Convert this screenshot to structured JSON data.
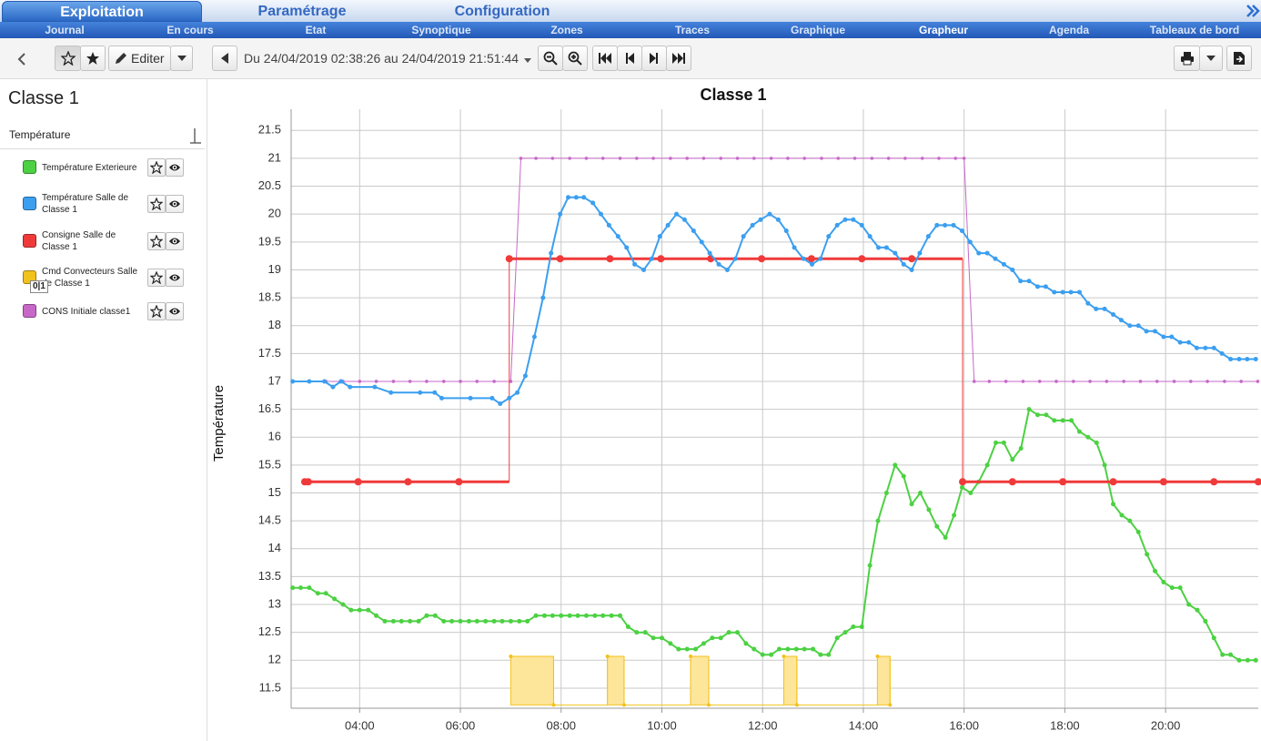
{
  "tabs": [
    "Exploitation",
    "Paramétrage",
    "Configuration"
  ],
  "nav": [
    "Journal",
    "En cours",
    "Etat",
    "Synoptique",
    "Zones",
    "Traces",
    "Graphique",
    "Grapheur",
    "Agenda",
    "Tableaux de bord"
  ],
  "toolbar": {
    "edit": "Editer",
    "date_range": "Du 24/04/2019 02:38:26 au 24/04/2019 21:51:44"
  },
  "sidebar": {
    "title": "Classe 1",
    "group": "Température",
    "badge": "0|1"
  },
  "chart_data": {
    "type": "line",
    "title": "Classe 1",
    "y_label": "Température",
    "grid": true,
    "xlim": [
      2.64,
      21.84
    ],
    "ylim": [
      11.14,
      21.88
    ],
    "xticks": [
      {
        "value": 4,
        "label": "04:00"
      },
      {
        "value": 6,
        "label": "06:00"
      },
      {
        "value": 8,
        "label": "08:00"
      },
      {
        "value": 10,
        "label": "10:00"
      },
      {
        "value": 12,
        "label": "12:00"
      },
      {
        "value": 14,
        "label": "14:00"
      },
      {
        "value": 16,
        "label": "16:00"
      },
      {
        "value": 18,
        "label": "18:00"
      },
      {
        "value": 20,
        "label": "20:00"
      }
    ],
    "yticks": [
      11.5,
      12,
      12.5,
      13,
      13.5,
      14,
      14.5,
      15,
      15.5,
      16,
      16.5,
      17,
      17.5,
      18,
      18.5,
      19,
      19.5,
      20,
      20.5,
      21,
      21.5
    ],
    "series": [
      {
        "name": "Température Exterieure",
        "color": "#4cd142",
        "x": [
          2.67,
          2.83,
          3.0,
          3.17,
          3.33,
          3.5,
          3.67,
          3.83,
          4.0,
          4.17,
          4.33,
          4.5,
          4.67,
          4.83,
          5.0,
          5.17,
          5.33,
          5.5,
          5.67,
          5.83,
          6.0,
          6.17,
          6.33,
          6.5,
          6.67,
          6.83,
          7.0,
          7.17,
          7.33,
          7.5,
          7.67,
          7.83,
          8.0,
          8.17,
          8.33,
          8.5,
          8.67,
          8.83,
          9.0,
          9.17,
          9.33,
          9.5,
          9.67,
          9.83,
          10.0,
          10.17,
          10.33,
          10.5,
          10.67,
          10.83,
          11.0,
          11.17,
          11.33,
          11.5,
          11.67,
          11.83,
          12.0,
          12.17,
          12.33,
          12.5,
          12.67,
          12.83,
          13.0,
          13.15,
          13.31,
          13.48,
          13.64,
          13.8,
          13.97,
          14.13,
          14.29,
          14.46,
          14.63,
          14.8,
          14.96,
          15.13,
          15.3,
          15.46,
          15.63,
          15.8,
          15.96,
          16.13,
          16.29,
          16.46,
          16.63,
          16.79,
          16.96,
          17.13,
          17.29,
          17.46,
          17.63,
          17.79,
          17.96,
          18.13,
          18.29,
          18.46,
          18.63,
          18.79,
          18.96,
          19.13,
          19.29,
          19.46,
          19.63,
          19.79,
          19.96,
          20.13,
          20.29,
          20.46,
          20.63,
          20.79,
          20.96,
          21.13,
          21.29,
          21.46,
          21.63,
          21.79
        ],
        "values": [
          13.3,
          13.3,
          13.3,
          13.2,
          13.2,
          13.1,
          13.0,
          12.9,
          12.9,
          12.9,
          12.8,
          12.7,
          12.7,
          12.7,
          12.7,
          12.7,
          12.8,
          12.8,
          12.7,
          12.7,
          12.7,
          12.7,
          12.7,
          12.7,
          12.7,
          12.7,
          12.7,
          12.7,
          12.7,
          12.8,
          12.8,
          12.8,
          12.8,
          12.8,
          12.8,
          12.8,
          12.8,
          12.8,
          12.8,
          12.8,
          12.6,
          12.5,
          12.5,
          12.4,
          12.4,
          12.3,
          12.2,
          12.2,
          12.2,
          12.3,
          12.4,
          12.4,
          12.5,
          12.5,
          12.3,
          12.2,
          12.1,
          12.1,
          12.2,
          12.2,
          12.2,
          12.2,
          12.2,
          12.1,
          12.1,
          12.4,
          12.5,
          12.6,
          12.6,
          13.7,
          14.5,
          15.0,
          15.5,
          15.3,
          14.8,
          15.0,
          14.7,
          14.4,
          14.2,
          14.6,
          15.1,
          15.0,
          15.2,
          15.5,
          15.9,
          15.9,
          15.6,
          15.8,
          16.5,
          16.4,
          16.4,
          16.3,
          16.3,
          16.3,
          16.1,
          16.0,
          15.9,
          15.5,
          14.8,
          14.6,
          14.5,
          14.3,
          13.9,
          13.6,
          13.4,
          13.3,
          13.3,
          13.0,
          12.9,
          12.7,
          12.4,
          12.1,
          12.1,
          12.0,
          12.0,
          12.0
        ]
      },
      {
        "name": "Température Salle de Classe 1",
        "color": "#3b9ff0",
        "x": [
          2.67,
          3.0,
          3.3,
          3.47,
          3.63,
          3.81,
          4.3,
          4.62,
          5.2,
          5.49,
          5.63,
          6.2,
          6.63,
          6.79,
          6.97,
          7.13,
          7.29,
          7.47,
          7.64,
          7.8,
          7.98,
          8.14,
          8.3,
          8.45,
          8.63,
          8.79,
          8.95,
          9.13,
          9.3,
          9.46,
          9.64,
          9.8,
          9.96,
          10.12,
          10.29,
          10.45,
          10.63,
          10.79,
          10.95,
          11.13,
          11.3,
          11.46,
          11.62,
          11.8,
          11.96,
          12.14,
          12.31,
          12.47,
          12.63,
          12.81,
          12.98,
          13.15,
          13.31,
          13.48,
          13.64,
          13.8,
          13.97,
          14.13,
          14.3,
          14.46,
          14.63,
          14.8,
          14.96,
          15.12,
          15.29,
          15.46,
          15.62,
          15.79,
          15.96,
          16.12,
          16.29,
          16.46,
          16.62,
          16.79,
          16.96,
          17.12,
          17.29,
          17.46,
          17.62,
          17.79,
          17.96,
          18.12,
          18.29,
          18.46,
          18.62,
          18.79,
          18.96,
          19.12,
          19.29,
          19.46,
          19.62,
          19.79,
          19.96,
          20.12,
          20.29,
          20.46,
          20.62,
          20.79,
          20.96,
          21.12,
          21.29,
          21.46,
          21.62,
          21.79
        ],
        "values": [
          17,
          17,
          17,
          16.9,
          17,
          16.9,
          16.9,
          16.8,
          16.8,
          16.8,
          16.7,
          16.7,
          16.7,
          16.6,
          16.7,
          16.8,
          17.1,
          17.8,
          18.5,
          19.3,
          20.0,
          20.3,
          20.3,
          20.3,
          20.2,
          20.0,
          19.8,
          19.6,
          19.4,
          19.1,
          19.0,
          19.2,
          19.6,
          19.8,
          20.0,
          19.9,
          19.7,
          19.5,
          19.3,
          19.1,
          19.0,
          19.2,
          19.6,
          19.8,
          19.9,
          20.0,
          19.9,
          19.7,
          19.4,
          19.2,
          19.1,
          19.2,
          19.6,
          19.8,
          19.9,
          19.9,
          19.8,
          19.6,
          19.4,
          19.4,
          19.3,
          19.1,
          19.0,
          19.3,
          19.6,
          19.8,
          19.8,
          19.8,
          19.7,
          19.5,
          19.3,
          19.3,
          19.2,
          19.1,
          19.0,
          18.8,
          18.8,
          18.7,
          18.7,
          18.6,
          18.6,
          18.6,
          18.6,
          18.4,
          18.3,
          18.3,
          18.2,
          18.1,
          18.0,
          18.0,
          17.9,
          17.9,
          17.8,
          17.8,
          17.7,
          17.7,
          17.6,
          17.6,
          17.6,
          17.5,
          17.4,
          17.4,
          17.4,
          17.4
        ]
      },
      {
        "name": "Consigne Salle de Classe 1",
        "color": "#f03a3a",
        "step": true,
        "x": [
          2.91,
          2.98,
          3.97,
          4.96,
          5.97,
          6.97,
          7.98,
          8.97,
          9.98,
          10.97,
          11.98,
          12.97,
          13.97,
          14.96,
          15.97,
          16.96,
          17.96,
          18.96,
          19.96,
          20.96,
          21.84
        ],
        "values": [
          15.2,
          15.2,
          15.2,
          15.2,
          15.2,
          19.2,
          19.2,
          19.2,
          19.2,
          19.2,
          19.2,
          19.2,
          19.2,
          19.2,
          15.2,
          15.2,
          15.2,
          15.2,
          15.2,
          15.2,
          15.2
        ]
      },
      {
        "name": "Cmd Convecteurs Salle de Classe 1",
        "color": "#f2c21c",
        "step": true,
        "fill": "#fde59a",
        "x": [
          7.0,
          7.85,
          8.92,
          9.25,
          10.57,
          10.93,
          12.42,
          12.68,
          14.28,
          14.53
        ],
        "values": [
          12.07,
          11.2,
          12.07,
          11.2,
          12.07,
          11.2,
          12.07,
          11.2,
          12.07,
          11.2
        ]
      },
      {
        "name": "CONS Initiale classe1",
        "color": "#c768c9",
        "x": [
          2.67,
          3,
          3.33,
          3.67,
          4,
          4.33,
          4.67,
          5,
          5.33,
          5.67,
          6,
          6.33,
          6.67,
          7,
          7.2,
          7.5,
          7.83,
          8.17,
          8.5,
          8.83,
          9.17,
          9.5,
          9.83,
          10.17,
          10.5,
          10.83,
          11.17,
          11.5,
          11.83,
          12.17,
          12.5,
          12.83,
          13.17,
          13.5,
          13.83,
          14.17,
          14.5,
          14.83,
          15.17,
          15.5,
          15.83,
          16.0,
          16.2,
          16.5,
          16.83,
          17.17,
          17.5,
          17.83,
          18.17,
          18.5,
          18.83,
          19.17,
          19.5,
          19.83,
          20.17,
          20.5,
          20.83,
          21.17,
          21.5,
          21.83
        ],
        "values": [
          17,
          17,
          17,
          17,
          17,
          17,
          17,
          17,
          17,
          17,
          17,
          17,
          17,
          17,
          21,
          21,
          21,
          21,
          21,
          21,
          21,
          21,
          21,
          21,
          21,
          21,
          21,
          21,
          21,
          21,
          21,
          21,
          21,
          21,
          21,
          21,
          21,
          21,
          21,
          21,
          21,
          21,
          17,
          17,
          17,
          17,
          17,
          17,
          17,
          17,
          17,
          17,
          17,
          17,
          17,
          17,
          17,
          17,
          17,
          17
        ]
      }
    ]
  }
}
